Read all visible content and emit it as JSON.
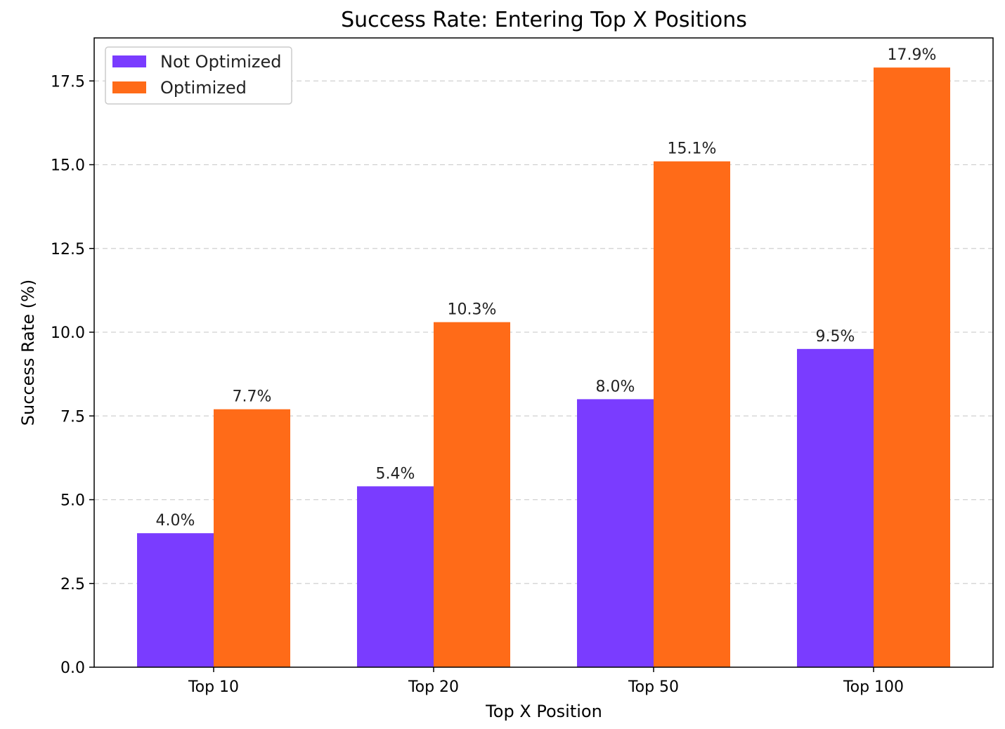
{
  "chart_data": {
    "type": "bar",
    "title": "Success Rate: Entering Top X Positions",
    "xlabel": "Top X Position",
    "ylabel": "Success Rate (%)",
    "categories": [
      "Top 10",
      "Top 20",
      "Top 50",
      "Top 100"
    ],
    "series": [
      {
        "name": "Not Optimized",
        "color": "#7a3cff",
        "values": [
          4.0,
          5.4,
          8.0,
          9.5
        ],
        "labels": [
          "4.0%",
          "5.4%",
          "8.0%",
          "9.5%"
        ]
      },
      {
        "name": "Optimized",
        "color": "#ff6b18",
        "values": [
          7.7,
          10.3,
          15.1,
          17.9
        ],
        "labels": [
          "7.7%",
          "10.3%",
          "15.1%",
          "17.9%"
        ]
      }
    ],
    "ylim": [
      0,
      18.8
    ],
    "yticks": [
      "0.0",
      "2.5",
      "5.0",
      "7.5",
      "10.0",
      "12.5",
      "15.0",
      "17.5"
    ],
    "grid": "y-dashed",
    "legend": "top-left"
  }
}
